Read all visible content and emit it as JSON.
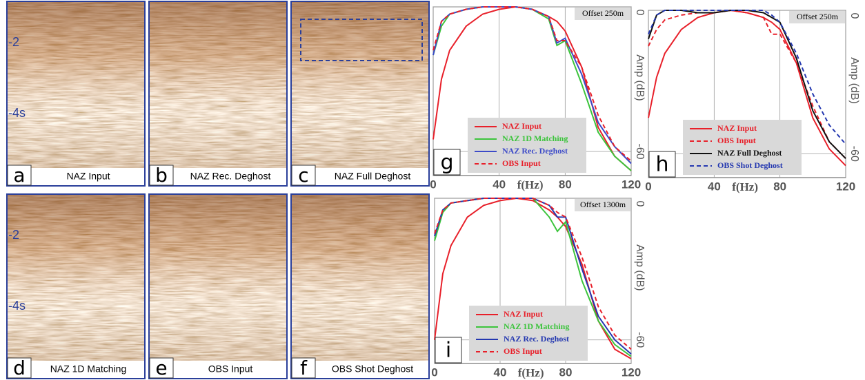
{
  "depth_labels": [
    "-2",
    "-4s"
  ],
  "panels": [
    {
      "letter": "a",
      "caption": "NAZ Input"
    },
    {
      "letter": "b",
      "caption": "NAZ Rec. Deghost"
    },
    {
      "letter": "c",
      "caption": "NAZ Full Deghost"
    },
    {
      "letter": "d",
      "caption": "NAZ 1D Matching"
    },
    {
      "letter": "e",
      "caption": "OBS Input"
    },
    {
      "letter": "f",
      "caption": "OBS Shot Deghost"
    }
  ],
  "chart_data": [
    {
      "type": "line",
      "letter": "g",
      "annotation": "Offset 250m",
      "x_label": "f(Hz)",
      "y_label": "Amp (dB)",
      "x": [
        0,
        5,
        10,
        20,
        30,
        40,
        50,
        60,
        70,
        75,
        80,
        90,
        100,
        110,
        120
      ],
      "xlim": [
        0,
        120
      ],
      "xticks": [
        0,
        40,
        80,
        120
      ],
      "ylim": [
        -70,
        0
      ],
      "yticks": [
        0,
        -60
      ],
      "grid": true,
      "legend": "lower left",
      "series": [
        {
          "name": "NAZ Input",
          "color": "#e8202a",
          "linestyle": "solid",
          "values": [
            -55,
            -30,
            -18,
            -8,
            -3,
            -1,
            0,
            -1,
            -4,
            -6,
            -10,
            -25,
            -50,
            -62,
            -68
          ]
        },
        {
          "name": "NAZ 1D Matching",
          "color": "#3cc43c",
          "linestyle": "solid",
          "values": [
            -20,
            -8,
            -3,
            -1,
            0,
            0,
            0,
            -1,
            -5,
            -16,
            -14,
            -32,
            -52,
            -62,
            -68
          ]
        },
        {
          "name": "NAZ Rec. Deghost",
          "color": "#3c4ac8",
          "linestyle": "solid",
          "values": [
            -20,
            -6,
            -3,
            -1,
            0,
            0,
            0,
            -1,
            -4,
            -15,
            -13,
            -28,
            -48,
            -58,
            -65
          ]
        },
        {
          "name": "OBS Input",
          "color": "#e8202a",
          "linestyle": "dashed",
          "values": [
            -18,
            -6,
            -3,
            -1,
            0,
            0,
            0,
            -1,
            -4,
            -14,
            -14,
            -25,
            -45,
            -58,
            -64
          ]
        }
      ]
    },
    {
      "type": "line",
      "letter": "h",
      "annotation": "Offset 250m",
      "x_label": "f(Hz)",
      "y_label": "Amp (dB)",
      "x": [
        0,
        5,
        10,
        20,
        30,
        40,
        50,
        60,
        70,
        75,
        80,
        90,
        100,
        110,
        120
      ],
      "xlim": [
        0,
        120
      ],
      "xticks": [
        0,
        40,
        80,
        120
      ],
      "ylim": [
        -70,
        0
      ],
      "yticks": [
        0,
        -60
      ],
      "grid": true,
      "legend": "lower left",
      "series": [
        {
          "name": "NAZ Input",
          "color": "#e8202a",
          "linestyle": "solid",
          "values": [
            -45,
            -28,
            -18,
            -8,
            -3,
            -1,
            0,
            -1,
            -3,
            -5,
            -8,
            -22,
            -45,
            -58,
            -65
          ]
        },
        {
          "name": "OBS Input",
          "color": "#e8202a",
          "linestyle": "dashed",
          "values": [
            -15,
            -8,
            -4,
            -2,
            -1,
            -1,
            0,
            -1,
            -3,
            -10,
            -10,
            -22,
            -40,
            -55,
            -62
          ]
        },
        {
          "name": "NAZ Full Deghost",
          "color": "#111111",
          "linestyle": "solid",
          "values": [
            -12,
            -2,
            0,
            0,
            -1,
            -1,
            0,
            0,
            -1,
            -3,
            -5,
            -20,
            -42,
            -55,
            -62
          ]
        },
        {
          "name": "OBS Shot Deghost",
          "color": "#2438b0",
          "linestyle": "dashed",
          "values": [
            -10,
            -2,
            0,
            0,
            0,
            0,
            0,
            0,
            0,
            -2,
            -5,
            -18,
            -35,
            -48,
            -56
          ]
        }
      ]
    },
    {
      "type": "line",
      "letter": "i",
      "annotation": "Offset 1300m",
      "x_label": "f(Hz)",
      "y_label": "Amp (dB)",
      "x": [
        0,
        5,
        10,
        20,
        30,
        40,
        50,
        60,
        70,
        75,
        80,
        90,
        100,
        110,
        120
      ],
      "xlim": [
        0,
        120
      ],
      "xticks": [
        0,
        40,
        80,
        120
      ],
      "ylim": [
        -70,
        0
      ],
      "yticks": [
        0,
        -60
      ],
      "grid": true,
      "legend": "lower left",
      "series": [
        {
          "name": "NAZ Input",
          "color": "#e8202a",
          "linestyle": "solid",
          "values": [
            -60,
            -32,
            -20,
            -8,
            -3,
            -1,
            0,
            -1,
            -5,
            -8,
            -12,
            -28,
            -52,
            -64,
            -68
          ]
        },
        {
          "name": "NAZ 1D Matching",
          "color": "#3cc43c",
          "linestyle": "solid",
          "values": [
            -18,
            -6,
            -2,
            -1,
            0,
            0,
            0,
            0,
            -8,
            -14,
            -10,
            -35,
            -52,
            -62,
            -67
          ]
        },
        {
          "name": "NAZ Rec. Deghost",
          "color": "#2438b0",
          "linestyle": "solid",
          "values": [
            -16,
            -5,
            -2,
            -1,
            0,
            0,
            0,
            0,
            -3,
            -8,
            -8,
            -30,
            -50,
            -60,
            -66
          ]
        },
        {
          "name": "OBS Input",
          "color": "#e8202a",
          "linestyle": "dashed",
          "values": [
            -15,
            -5,
            -2,
            -1,
            0,
            0,
            0,
            0,
            -3,
            -6,
            -8,
            -25,
            -46,
            -58,
            -64
          ]
        }
      ]
    }
  ]
}
